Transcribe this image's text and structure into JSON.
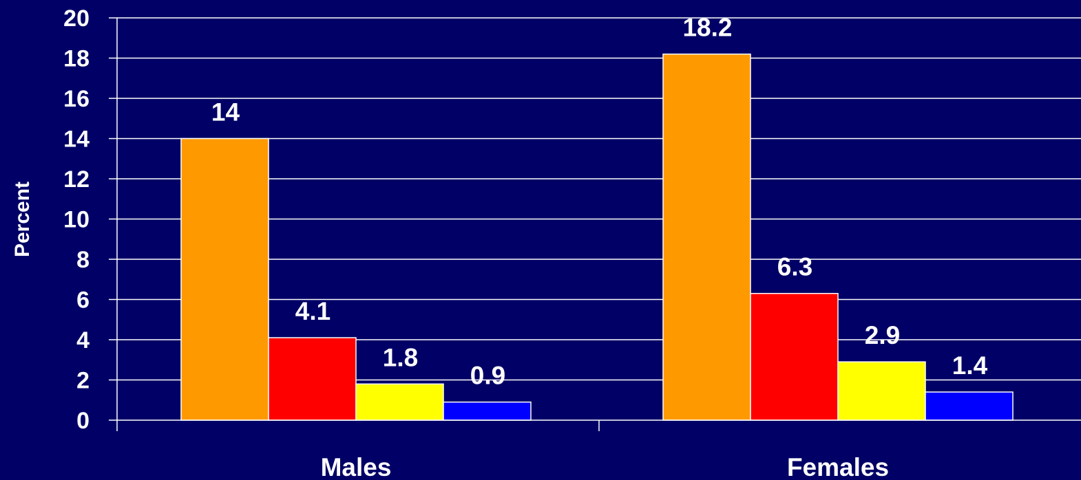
{
  "chart_data": {
    "type": "bar",
    "ylabel": "Percent",
    "xlabel": "",
    "ylim": [
      0,
      20
    ],
    "yticks": [
      0,
      2,
      4,
      6,
      8,
      10,
      12,
      14,
      16,
      18,
      20
    ],
    "grid": true,
    "legend": "none",
    "categories": [
      "Males",
      "Females"
    ],
    "series": [
      {
        "color": "#FF9900",
        "values": [
          14,
          18.2
        ],
        "labels": [
          "14",
          "18.2"
        ]
      },
      {
        "color": "#FF0000",
        "values": [
          4.1,
          6.3
        ],
        "labels": [
          "4.1",
          "6.3"
        ]
      },
      {
        "color": "#FFFF00",
        "values": [
          1.8,
          2.9
        ],
        "labels": [
          "1.8",
          "2.9"
        ]
      },
      {
        "color": "#0000FF",
        "values": [
          0.9,
          1.4
        ],
        "labels": [
          "0.9",
          "1.4"
        ]
      }
    ]
  },
  "colors": {
    "background": "#000066",
    "grid": "#FFFFFF",
    "text": "#FFFFFF"
  }
}
